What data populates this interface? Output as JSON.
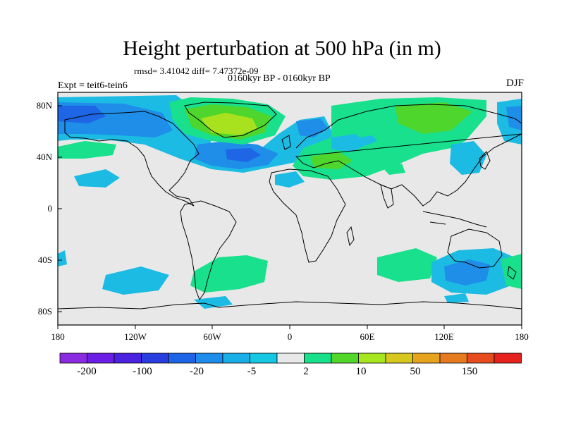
{
  "title": "Height perturbation at 500 hPa (in m)",
  "stats": "rmsd= 3.41042 diff= 7.47372e-09",
  "period": "0160kyr BP - 0160kyr BP",
  "experiment": "Expt = teit6-tein6",
  "season": "DJF",
  "lat_labels": [
    "80N",
    "40N",
    "0",
    "40S",
    "80S"
  ],
  "lon_labels": [
    "180",
    "120W",
    "60W",
    "0",
    "60E",
    "120E",
    "180"
  ],
  "colorbar": {
    "labels": [
      "-200",
      "-100",
      "-20",
      "-5",
      "2",
      "10",
      "50",
      "150"
    ],
    "colors": [
      "#8a2be2",
      "#6a1ee6",
      "#4a22e0",
      "#2a3ee0",
      "#1e64e6",
      "#1e8cea",
      "#1aaee6",
      "#14c8e4",
      "#e8e8e8",
      "#17df8a",
      "#52d62a",
      "#a6e61e",
      "#d6c81e",
      "#e6a41e",
      "#e67a1e",
      "#e64c1e",
      "#e6221e"
    ]
  },
  "palette": {
    "ocean": "#e8e8e8",
    "light_blue": "#1cbbe4",
    "blue": "#1e8ee8",
    "deep_blue": "#1e66e6",
    "sea_green": "#18e08c",
    "green": "#4fd62c",
    "yellow_green": "#a8e21e"
  }
}
